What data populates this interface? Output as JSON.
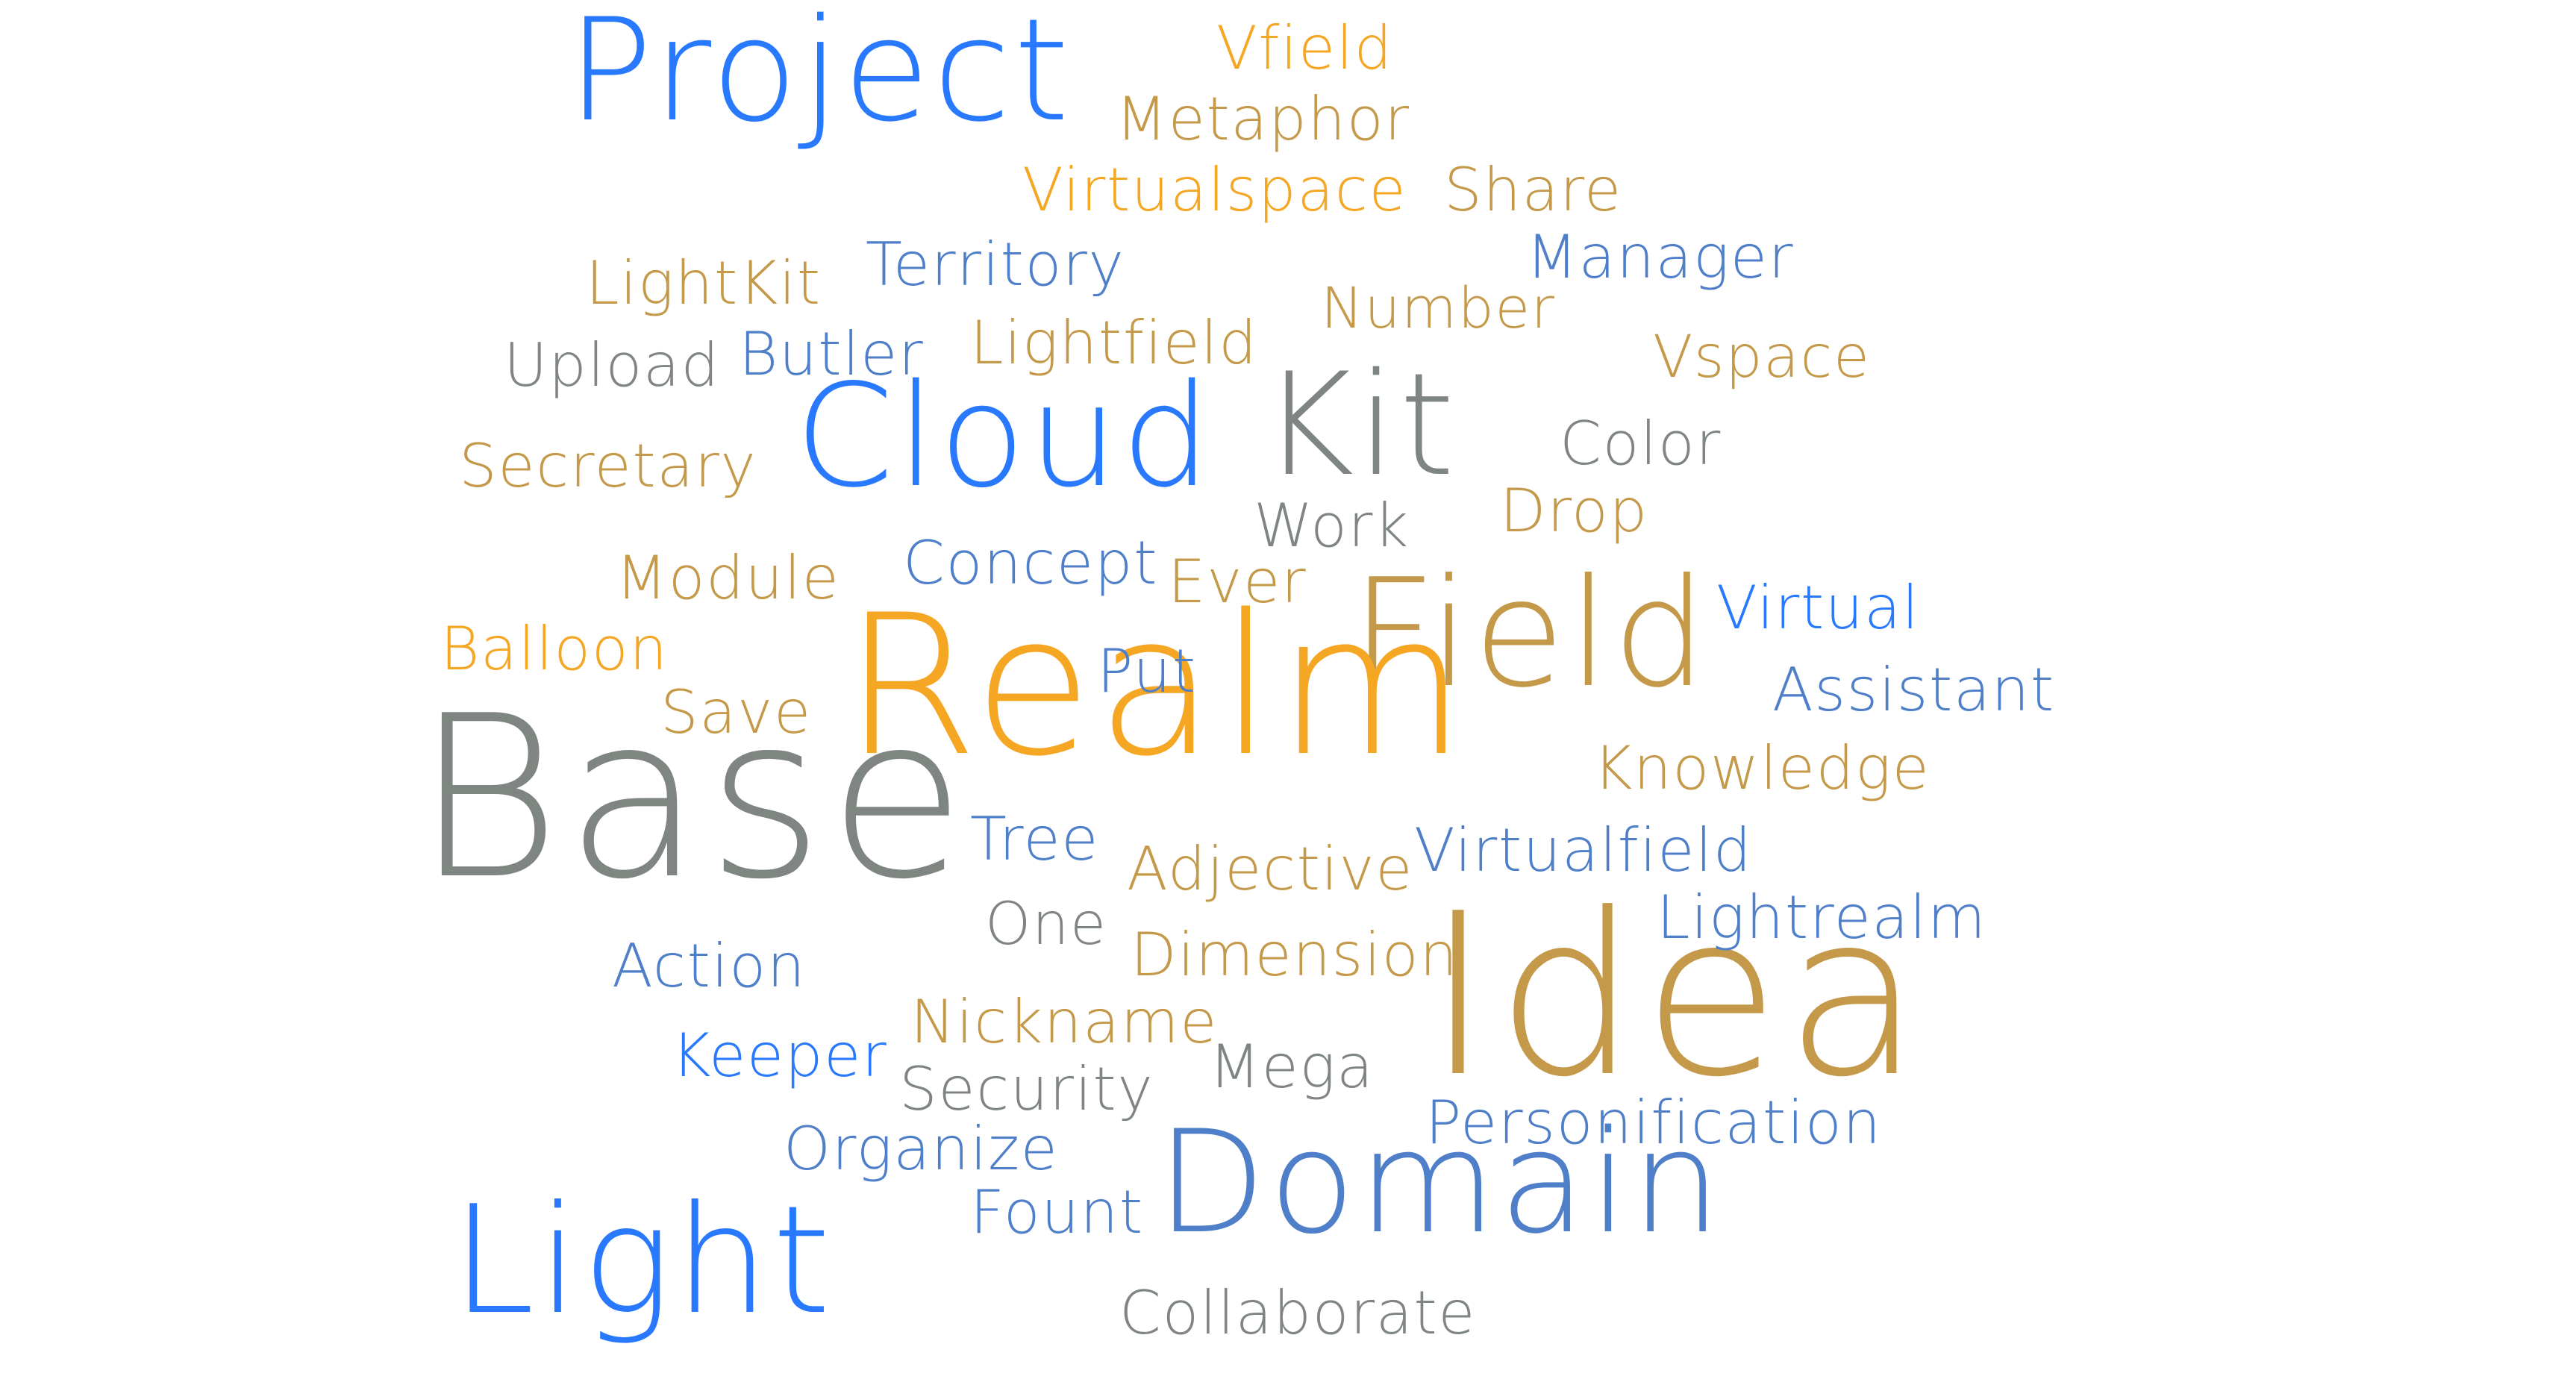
{
  "colors": {
    "blue": "#2979ff",
    "steel_blue": "#4f7fc9",
    "orange": "#f5a623",
    "tan": "#c49a4a",
    "gray": "#7f8580"
  },
  "words": [
    {
      "text": "Project",
      "color": "blue"
    },
    {
      "text": "Vfield",
      "color": "orange"
    },
    {
      "text": "Metaphor",
      "color": "tan"
    },
    {
      "text": "Virtualspace",
      "color": "orange"
    },
    {
      "text": "Share",
      "color": "tan"
    },
    {
      "text": "Manager",
      "color": "steel_blue"
    },
    {
      "text": "Territory",
      "color": "steel_blue"
    },
    {
      "text": "LightKit",
      "color": "tan"
    },
    {
      "text": "Number",
      "color": "tan"
    },
    {
      "text": "Upload",
      "color": "gray"
    },
    {
      "text": "Butler",
      "color": "steel_blue"
    },
    {
      "text": "Lightfield",
      "color": "tan"
    },
    {
      "text": "Vspace",
      "color": "tan"
    },
    {
      "text": "Cloud",
      "color": "blue"
    },
    {
      "text": "Kit",
      "color": "gray"
    },
    {
      "text": "Color",
      "color": "gray"
    },
    {
      "text": "Secretary",
      "color": "tan"
    },
    {
      "text": "Work",
      "color": "gray"
    },
    {
      "text": "Drop",
      "color": "tan"
    },
    {
      "text": "Module",
      "color": "tan"
    },
    {
      "text": "Concept",
      "color": "steel_blue"
    },
    {
      "text": "Ever",
      "color": "tan"
    },
    {
      "text": "Field",
      "color": "tan"
    },
    {
      "text": "Virtual",
      "color": "blue"
    },
    {
      "text": "Balloon",
      "color": "orange"
    },
    {
      "text": "Realm",
      "color": "orange"
    },
    {
      "text": "Put",
      "color": "steel_blue"
    },
    {
      "text": "Assistant",
      "color": "steel_blue"
    },
    {
      "text": "Save",
      "color": "tan"
    },
    {
      "text": "Knowledge",
      "color": "tan"
    },
    {
      "text": "Base",
      "color": "gray"
    },
    {
      "text": "Tree",
      "color": "steel_blue"
    },
    {
      "text": "Adjective",
      "color": "tan"
    },
    {
      "text": "Virtualfield",
      "color": "steel_blue"
    },
    {
      "text": "One",
      "color": "gray"
    },
    {
      "text": "Idea",
      "color": "tan"
    },
    {
      "text": "Lightrealm",
      "color": "steel_blue"
    },
    {
      "text": "Action",
      "color": "steel_blue"
    },
    {
      "text": "Dimension",
      "color": "tan"
    },
    {
      "text": "Nickname",
      "color": "tan"
    },
    {
      "text": "Keeper",
      "color": "blue"
    },
    {
      "text": "Mega",
      "color": "gray"
    },
    {
      "text": "Security",
      "color": "gray"
    },
    {
      "text": "Personification",
      "color": "steel_blue"
    },
    {
      "text": "Organize",
      "color": "steel_blue"
    },
    {
      "text": "Domain",
      "color": "steel_blue"
    },
    {
      "text": "Fount",
      "color": "steel_blue"
    },
    {
      "text": "Light",
      "color": "blue"
    },
    {
      "text": "Collaborate",
      "color": "gray"
    }
  ]
}
